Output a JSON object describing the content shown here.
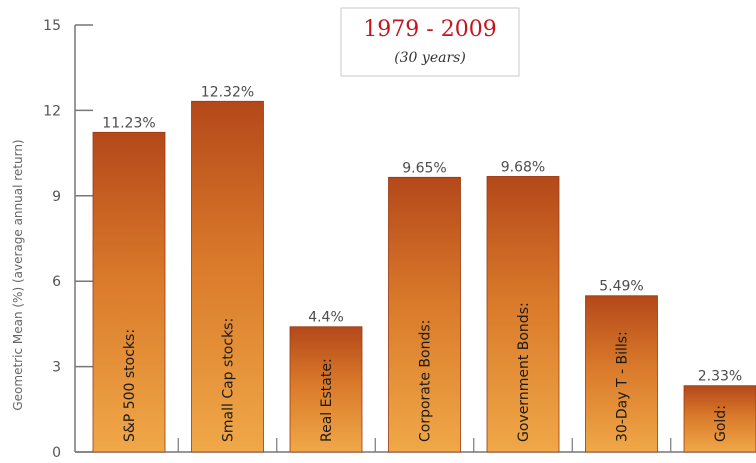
{
  "chart_data": {
    "type": "bar",
    "title": "1979 - 2009",
    "subtitle": "(30 years)",
    "ylabel": "Geometric Mean (%) (average annual return)",
    "xlabel": "",
    "ylim": [
      0,
      15
    ],
    "yticks": [
      "0",
      "3",
      "6",
      "9",
      "12",
      "15"
    ],
    "grid": false,
    "categories": [
      "S&P 500 stocks:",
      "Small Cap stocks:",
      "Real Estate:",
      "Corporate Bonds:",
      "Government Bonds:",
      "30-Day T - Bills:",
      "Gold:"
    ],
    "values": [
      11.23,
      12.32,
      4.4,
      9.65,
      9.68,
      5.49,
      2.33
    ],
    "value_labels": [
      "11.23%",
      "12.32%",
      "4.4%",
      "9.65%",
      "9.68%",
      "5.49%",
      "2.33%"
    ],
    "colors": {
      "bar_top": "#b4481a",
      "bar_mid": "#d9792a",
      "bar_bottom": "#f0a848",
      "title": "#c4161c",
      "axis": "#777777"
    }
  }
}
